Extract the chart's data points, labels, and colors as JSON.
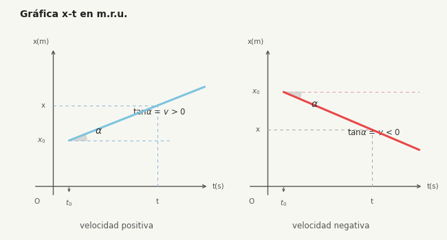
{
  "title": "Gráfica x-t en m.r.u.",
  "title_fontsize": 10,
  "title_fontweight": "bold",
  "background_color": "#f7f7f2",
  "left_chart": {
    "line_color": "#7dc4de",
    "line_width": 2.2,
    "dashed_color": "#8bbbd4",
    "subtitle": "velocidad positiva",
    "formula": "tan$\\alpha$ = $v$ > 0"
  },
  "right_chart": {
    "line_color": "#e84848",
    "line_width": 2.2,
    "dashed_color_h": "#e8a0a0",
    "dashed_color_v": "#aaaaaa",
    "subtitle": "velocidad negativa",
    "formula": "tan$\\alpha$ = $v$ < 0"
  },
  "text_color": "#555555",
  "wedge_color": "#cccccc"
}
